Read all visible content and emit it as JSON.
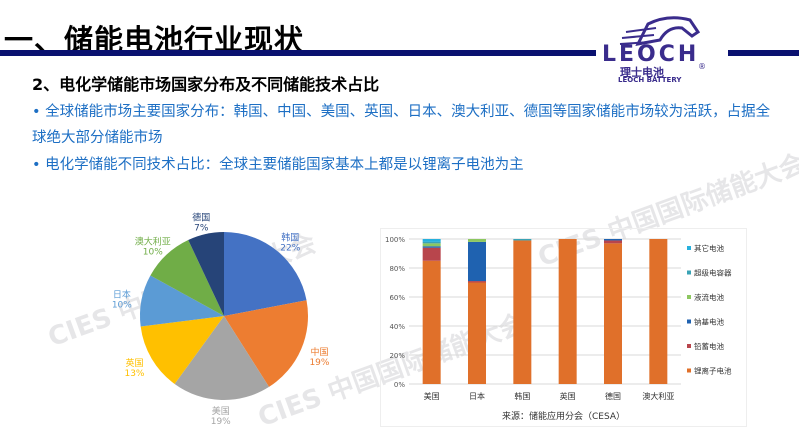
{
  "header": {
    "title": "一、储能电池行业现状",
    "logo_text": "LEOCH",
    "logo_cn": "理士电池",
    "logo_sub": "LEOCH BATTERY",
    "logo_mark": "®"
  },
  "subtitle": "2、电化学储能市场国家分布及不同储能技术占比",
  "bullets": [
    "• 全球储能市场主要国家分布：韩国、中国、美国、英国、日本、澳大利亚、德国等国家储能市场较为活跃，占据全球绝大部分储能市场",
    "• 电化学储能不同技术占比：全球主要储能国家基本上都是以锂离子电池为主"
  ],
  "watermark": "CIES 中国国际储能大会",
  "watermark2": "储能应用分会（CESA）",
  "chart_data": [
    {
      "type": "pie",
      "slices": [
        {
          "label": "韩国",
          "value": 22,
          "pct": "22%",
          "color": "#4472c4"
        },
        {
          "label": "中国",
          "value": 19,
          "pct": "19%",
          "color": "#ed7d31"
        },
        {
          "label": "美国",
          "value": 19,
          "pct": "19%",
          "color": "#a5a5a5"
        },
        {
          "label": "英国",
          "value": 13,
          "pct": "13%",
          "color": "#ffc000"
        },
        {
          "label": "日本",
          "value": 10,
          "pct": "10%",
          "color": "#5b9bd5"
        },
        {
          "label": "澳大利亚",
          "value": 10,
          "pct": "10%",
          "color": "#70ad47"
        },
        {
          "label": "德国",
          "value": 7,
          "pct": "7%",
          "color": "#264478"
        }
      ]
    },
    {
      "type": "bar",
      "stacked": true,
      "categories": [
        "美国",
        "日本",
        "韩国",
        "英国",
        "德国",
        "澳大利亚"
      ],
      "yticks": [
        "0%",
        "20%",
        "40%",
        "60%",
        "80%",
        "100%"
      ],
      "ylim": [
        0,
        100
      ],
      "series": [
        {
          "name": "锂离子电池",
          "color": "#e0702a",
          "values": [
            85,
            70,
            99,
            100,
            97,
            100
          ]
        },
        {
          "name": "铅蓄电池",
          "color": "#b8454c",
          "values": [
            9,
            1,
            0,
            0,
            2,
            0
          ]
        },
        {
          "name": "钠基电池",
          "color": "#1f62b0",
          "values": [
            1,
            27,
            0,
            0,
            1,
            0
          ]
        },
        {
          "name": "液流电池",
          "color": "#8dc760",
          "values": [
            2,
            2,
            0,
            0,
            0,
            0
          ]
        },
        {
          "name": "超级电容器",
          "color": "#3aa3b5",
          "values": [
            1,
            0,
            1,
            0,
            0,
            0
          ]
        },
        {
          "name": "其它电池",
          "color": "#27b0dd",
          "values": [
            2,
            0,
            0,
            0,
            0,
            0
          ]
        }
      ],
      "source": "来源：储能应用分会（CESA）"
    }
  ]
}
